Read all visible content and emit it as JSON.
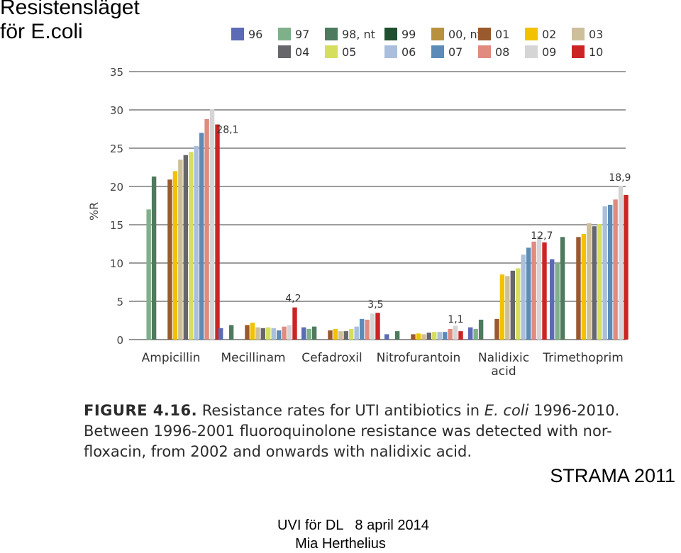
{
  "slide": {
    "title": "Resistensläget\nför E.coli",
    "source": "STRAMA 2011",
    "footer": {
      "event": "UVI för DL",
      "date": "8 april 2014",
      "author": "Mia Herthelius"
    }
  },
  "caption": {
    "label": "FIGURE 4.16.",
    "text_before": " Resistance rates for UTI antibiotics in ",
    "text_italic": "E. coli",
    "text_after": " 1996-2010. Between 1996-2001 fluoroquinolone resistance was detected with nor-floxacin, from 2002 and onwards with nalidixic acid."
  },
  "chart_data": {
    "type": "bar",
    "ylabel": "%R",
    "ylim": [
      0,
      35
    ],
    "yticks": [
      0,
      5,
      10,
      15,
      20,
      25,
      30,
      35
    ],
    "grid": true,
    "legend_position": "top",
    "categories": [
      "Ampicillin",
      "Mecillinam",
      "Cefadroxil",
      "Nitrofurantoin",
      "Nalidixic acid",
      "Trimethoprim"
    ],
    "category_labels": [
      [
        "Ampicillin"
      ],
      [
        "Mecillinam"
      ],
      [
        "Cefadroxil"
      ],
      [
        "Nitrofurantoin"
      ],
      [
        "Nalidixic",
        "acid"
      ],
      [
        "Trimethoprim"
      ]
    ],
    "series": [
      {
        "name": "96",
        "color": "#5b6bb5",
        "values": [
          null,
          1.5,
          1.6,
          0.7,
          1.6,
          10.5
        ]
      },
      {
        "name": "97",
        "color": "#7fb08a",
        "values": [
          17,
          null,
          1.4,
          null,
          1.4,
          10
        ]
      },
      {
        "name": "98, nt",
        "color": "#4e7a5e",
        "values": [
          21.3,
          1.9,
          1.7,
          1.1,
          2.6,
          13.4
        ]
      },
      {
        "name": "99",
        "color": "#1f4f30",
        "values": [
          null,
          null,
          null,
          null,
          null,
          null
        ]
      },
      {
        "name": "00, nt",
        "color": "#b8913e",
        "values": [
          null,
          null,
          null,
          null,
          null,
          null
        ]
      },
      {
        "name": "01",
        "color": "#9a5a2e",
        "values": [
          20.9,
          1.9,
          1.2,
          0.7,
          2.7,
          13.4
        ]
      },
      {
        "name": "02",
        "color": "#f2c200",
        "values": [
          22,
          2.2,
          1.4,
          0.8,
          8.5,
          13.8
        ]
      },
      {
        "name": "03",
        "color": "#cdbf9a",
        "values": [
          23.5,
          1.6,
          1.1,
          0.7,
          8.3,
          15.2
        ]
      },
      {
        "name": "04",
        "color": "#67676b",
        "values": [
          24.1,
          1.5,
          1.1,
          0.9,
          9.0,
          14.8
        ]
      },
      {
        "name": "05",
        "color": "#d6de5e",
        "values": [
          24.5,
          1.6,
          1.4,
          1.0,
          9.3,
          15.1
        ]
      },
      {
        "name": "06",
        "color": "#a9bfdc",
        "values": [
          25.3,
          1.5,
          1.7,
          1.0,
          11.1,
          17.4
        ]
      },
      {
        "name": "07",
        "color": "#5b8bb6",
        "values": [
          27.0,
          1.2,
          2.7,
          1.0,
          12.0,
          17.6
        ]
      },
      {
        "name": "08",
        "color": "#e08a80",
        "values": [
          28.8,
          1.7,
          2.6,
          1.4,
          12.8,
          18.3
        ]
      },
      {
        "name": "09",
        "color": "#d5d5d5",
        "values": [
          30.1,
          1.9,
          3.4,
          1.8,
          13.5,
          20.1
        ]
      },
      {
        "name": "10",
        "color": "#cc2424",
        "values": [
          28.1,
          4.2,
          3.5,
          1.1,
          12.7,
          18.9
        ]
      }
    ],
    "annotations": [
      {
        "category": "Ampicillin",
        "series": "10",
        "text": "28,1"
      },
      {
        "category": "Mecillinam",
        "series": "10",
        "text": "4,2"
      },
      {
        "category": "Cefadroxil",
        "series": "10",
        "text": "3,5"
      },
      {
        "category": "Nitrofurantoin",
        "series": "10",
        "text": "1,1"
      },
      {
        "category": "Nalidixic acid",
        "series": "10",
        "text": "12,7"
      },
      {
        "category": "Trimethoprim",
        "series": "10",
        "text": "18,9"
      }
    ]
  }
}
